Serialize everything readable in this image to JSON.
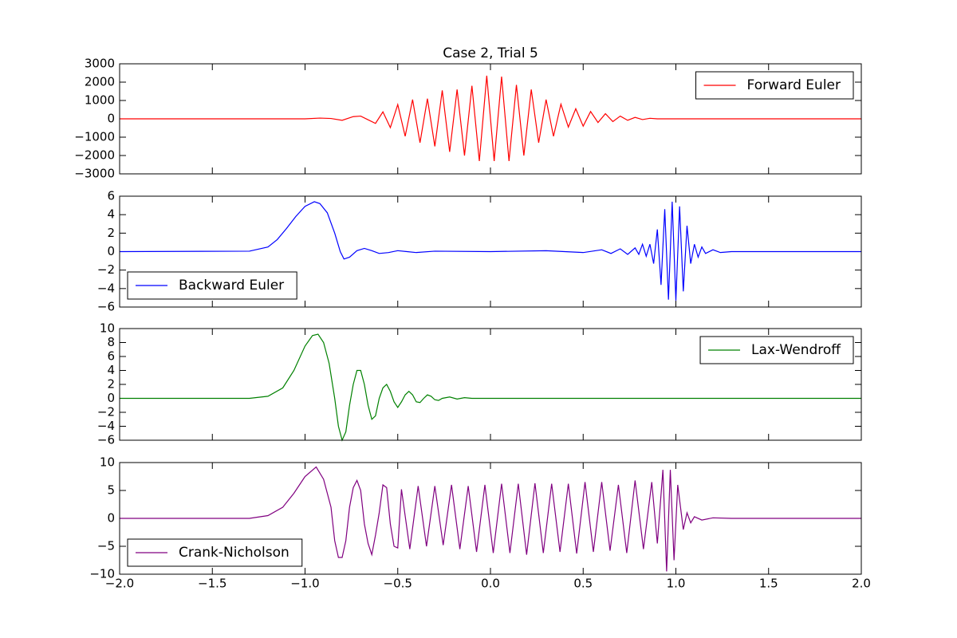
{
  "chart_data": [
    {
      "type": "line",
      "title": "Case 2, Trial 5",
      "x": [
        -2.0,
        -1.0,
        -0.92,
        -0.86,
        -0.8,
        -0.74,
        -0.7,
        -0.66,
        -0.62,
        -0.58,
        -0.54,
        -0.5,
        -0.46,
        -0.42,
        -0.38,
        -0.34,
        -0.3,
        -0.26,
        -0.22,
        -0.18,
        -0.14,
        -0.1,
        -0.06,
        -0.02,
        0.02,
        0.06,
        0.1,
        0.14,
        0.18,
        0.22,
        0.26,
        0.3,
        0.34,
        0.38,
        0.42,
        0.46,
        0.5,
        0.54,
        0.58,
        0.62,
        0.66,
        0.7,
        0.74,
        0.78,
        0.82,
        0.86,
        0.9,
        2.0
      ],
      "series": [
        {
          "name": "Forward Euler",
          "color": "#ff0000",
          "values": [
            0,
            0,
            40,
            20,
            -80,
            120,
            150,
            -50,
            -250,
            380,
            -480,
            780,
            -950,
            1050,
            -1300,
            1100,
            -1500,
            1550,
            -1800,
            1600,
            -2000,
            1800,
            -2300,
            2350,
            -2300,
            2300,
            -2300,
            1850,
            -2000,
            1600,
            -1300,
            1050,
            -950,
            800,
            -450,
            550,
            -400,
            400,
            -200,
            280,
            -150,
            150,
            -80,
            80,
            -40,
            30,
            0,
            0
          ]
        }
      ],
      "xlim": [
        -2,
        2
      ],
      "ylim": [
        -3000,
        3000
      ],
      "yticks": [
        {
          "value": -3000,
          "label": "−3000"
        },
        {
          "value": -2000,
          "label": "−2000"
        },
        {
          "value": -1000,
          "label": "−1000"
        },
        0,
        1000,
        2000,
        3000
      ],
      "legend": "upper right"
    },
    {
      "type": "line",
      "x": [
        -2.0,
        -1.3,
        -1.2,
        -1.15,
        -1.1,
        -1.05,
        -1.0,
        -0.95,
        -0.92,
        -0.88,
        -0.84,
        -0.81,
        -0.79,
        -0.76,
        -0.72,
        -0.68,
        -0.64,
        -0.6,
        -0.55,
        -0.5,
        -0.45,
        -0.4,
        -0.3,
        0.0,
        0.3,
        0.5,
        0.6,
        0.65,
        0.7,
        0.74,
        0.78,
        0.8,
        0.82,
        0.84,
        0.86,
        0.88,
        0.9,
        0.92,
        0.94,
        0.96,
        0.98,
        1.0,
        1.02,
        1.04,
        1.06,
        1.08,
        1.1,
        1.12,
        1.14,
        1.16,
        1.2,
        1.24,
        1.3,
        2.0
      ],
      "series": [
        {
          "name": "Backward Euler",
          "color": "#0000ff",
          "values": [
            0,
            0.05,
            0.5,
            1.3,
            2.5,
            3.8,
            4.9,
            5.4,
            5.2,
            4.2,
            2.0,
            0,
            -0.8,
            -0.6,
            0.1,
            0.35,
            0.1,
            -0.2,
            -0.1,
            0.1,
            0,
            -0.1,
            0.05,
            0,
            0.1,
            -0.1,
            0.2,
            -0.2,
            0.3,
            -0.3,
            0.4,
            -0.3,
            0.8,
            -0.5,
            0.8,
            -1.3,
            2.4,
            -3.6,
            4.6,
            -5.2,
            5.4,
            -5.3,
            4.9,
            -4.3,
            2.8,
            -1.3,
            0.8,
            -0.6,
            0.5,
            -0.2,
            0.2,
            -0.1,
            0,
            0
          ]
        }
      ],
      "xlim": [
        -2,
        2
      ],
      "ylim": [
        -6,
        6
      ],
      "yticks": [
        {
          "value": -6,
          "label": "−6"
        },
        {
          "value": -4,
          "label": "−4"
        },
        {
          "value": -2,
          "label": "−2"
        },
        0,
        2,
        4,
        6
      ],
      "legend": "lower left"
    },
    {
      "type": "line",
      "x": [
        -2.0,
        -1.3,
        -1.2,
        -1.12,
        -1.06,
        -1.0,
        -0.96,
        -0.93,
        -0.9,
        -0.87,
        -0.84,
        -0.82,
        -0.8,
        -0.78,
        -0.76,
        -0.74,
        -0.72,
        -0.7,
        -0.68,
        -0.66,
        -0.64,
        -0.62,
        -0.6,
        -0.58,
        -0.56,
        -0.54,
        -0.52,
        -0.5,
        -0.48,
        -0.46,
        -0.44,
        -0.42,
        -0.4,
        -0.38,
        -0.36,
        -0.34,
        -0.32,
        -0.3,
        -0.28,
        -0.26,
        -0.22,
        -0.18,
        -0.14,
        -0.1,
        2.0
      ],
      "series": [
        {
          "name": "Lax-Wendroff",
          "color": "#008000",
          "values": [
            0,
            0,
            0.3,
            1.5,
            4,
            7.5,
            9,
            9.2,
            8,
            5,
            0,
            -4,
            -6,
            -4.8,
            -1,
            2,
            4,
            4,
            2,
            -1,
            -3,
            -2.5,
            0,
            1.5,
            2,
            1,
            -0.5,
            -1.3,
            -0.5,
            0.5,
            1,
            0.5,
            -0.5,
            -0.6,
            0,
            0.5,
            0.3,
            -0.2,
            -0.3,
            0,
            0.2,
            -0.1,
            0.1,
            0,
            0
          ]
        }
      ],
      "xlim": [
        -2,
        2
      ],
      "ylim": [
        -6,
        10
      ],
      "yticks": [
        {
          "value": -6,
          "label": "−6"
        },
        {
          "value": -4,
          "label": "−4"
        },
        {
          "value": -2,
          "label": "−2"
        },
        0,
        2,
        4,
        6,
        8,
        10
      ],
      "legend": "upper right"
    },
    {
      "type": "line",
      "x": [
        -2.0,
        -1.3,
        -1.2,
        -1.12,
        -1.06,
        -1.0,
        -0.94,
        -0.9,
        -0.86,
        -0.84,
        -0.82,
        -0.8,
        -0.78,
        -0.76,
        -0.74,
        -0.72,
        -0.7,
        -0.68,
        -0.66,
        -0.64,
        -0.62,
        -0.6,
        -0.58,
        -0.56,
        -0.54,
        -0.52,
        -0.5,
        -0.48,
        -0.435,
        -0.39,
        -0.345,
        -0.3,
        -0.255,
        -0.21,
        -0.165,
        -0.12,
        -0.075,
        -0.03,
        0.015,
        0.06,
        0.105,
        0.15,
        0.195,
        0.24,
        0.285,
        0.33,
        0.375,
        0.42,
        0.465,
        0.51,
        0.555,
        0.6,
        0.645,
        0.69,
        0.735,
        0.78,
        0.825,
        0.87,
        0.9,
        0.93,
        0.95,
        0.97,
        0.99,
        1.01,
        1.04,
        1.06,
        1.08,
        1.1,
        1.14,
        1.2,
        1.3,
        2.0
      ],
      "series": [
        {
          "name": "Crank-Nicholson",
          "color": "#800080",
          "values": [
            0,
            0,
            0.5,
            2,
            4.5,
            7.5,
            9.2,
            7,
            2,
            -4,
            -7,
            -7,
            -4,
            2,
            5.5,
            6.8,
            5,
            -1,
            -4.5,
            -6.5,
            -3,
            1,
            6,
            5.5,
            -1,
            -5,
            -5.3,
            5.2,
            -5.5,
            5.8,
            -5,
            5.8,
            -4.8,
            6,
            -5.5,
            5.8,
            -6,
            6,
            -6.2,
            6.2,
            -6.2,
            6.2,
            -6.5,
            6.3,
            -6.2,
            6.2,
            -6,
            6.2,
            -6.3,
            6.5,
            -6,
            6.5,
            -5.8,
            6,
            -6.2,
            6.8,
            -5.5,
            6.5,
            -4.5,
            8.7,
            -9.5,
            8.7,
            -7.5,
            6,
            -2,
            1,
            -0.8,
            0.3,
            -0.3,
            0.1,
            0,
            0
          ]
        }
      ],
      "xlim": [
        -2,
        2
      ],
      "ylim": [
        -10,
        10
      ],
      "yticks": [
        {
          "value": -10,
          "label": "−10"
        },
        {
          "value": -5,
          "label": "−5"
        },
        0,
        5,
        10
      ],
      "xticks": [
        {
          "value": -2,
          "label": "−2.0"
        },
        {
          "value": -1.5,
          "label": "−1.5"
        },
        {
          "value": -1,
          "label": "−1.0"
        },
        {
          "value": -0.5,
          "label": "−0.5"
        },
        {
          "value": 0,
          "label": "0.0"
        },
        {
          "value": 0.5,
          "label": "0.5"
        },
        {
          "value": 1,
          "label": "1.0"
        },
        {
          "value": 1.5,
          "label": "1.5"
        },
        {
          "value": 2,
          "label": "2.0"
        }
      ],
      "legend": "lower left"
    }
  ]
}
